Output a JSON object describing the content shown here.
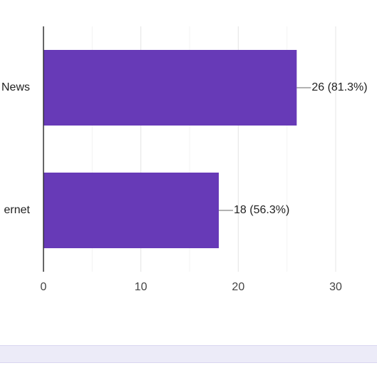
{
  "chart_data": {
    "type": "bar",
    "orientation": "horizontal",
    "categories": [
      "News",
      "ernet"
    ],
    "values": [
      26,
      18
    ],
    "value_labels": [
      "26 (81.3%)",
      "18 (56.3%)"
    ],
    "color": "#673ab7",
    "xlim": [
      0,
      30
    ],
    "xticks": [
      0,
      10,
      20,
      30
    ],
    "minor_gridlines": [
      5,
      15,
      25
    ],
    "grid": true
  }
}
